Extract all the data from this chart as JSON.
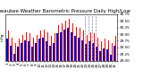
{
  "title": "Milwaukee Weather Barometric Pressure Daily High/Low",
  "background_color": "#ffffff",
  "high_color": "#ff0000",
  "low_color": "#0000cc",
  "ylim": [
    29.0,
    30.75
  ],
  "yticks": [
    29.0,
    29.25,
    29.5,
    29.75,
    30.0,
    30.25,
    30.5,
    30.75
  ],
  "ytick_labels": [
    "29.00",
    "29.25",
    "29.50",
    "29.75",
    "30.00",
    "30.25",
    "30.50",
    "30.75"
  ],
  "days": [
    "1",
    "2",
    "3",
    "4",
    "5",
    "6",
    "7",
    "8",
    "9",
    "10",
    "11",
    "12",
    "13",
    "14",
    "15",
    "16",
    "17",
    "18",
    "19",
    "20",
    "21",
    "22",
    "23",
    "24",
    "25",
    "26",
    "27",
    "28",
    "29",
    "30",
    "31"
  ],
  "high_vals": [
    30.12,
    29.88,
    29.65,
    29.82,
    29.98,
    30.08,
    30.02,
    29.88,
    29.98,
    30.12,
    30.18,
    30.08,
    29.92,
    30.02,
    30.32,
    30.42,
    30.52,
    30.58,
    30.42,
    30.28,
    30.22,
    30.12,
    29.98,
    30.08,
    30.05,
    29.88,
    29.72,
    29.82,
    29.78,
    29.68,
    29.92
  ],
  "low_vals": [
    29.82,
    29.58,
    29.28,
    29.52,
    29.68,
    29.78,
    29.72,
    29.52,
    29.68,
    29.82,
    29.88,
    29.72,
    29.58,
    29.68,
    30.02,
    30.08,
    30.18,
    30.22,
    30.08,
    29.92,
    29.88,
    29.78,
    29.62,
    29.72,
    29.68,
    29.52,
    29.38,
    29.48,
    29.42,
    29.22,
    29.58
  ],
  "dashed_region": [
    22,
    23,
    24
  ],
  "title_fontsize": 4.0,
  "tick_fontsize": 3.0,
  "bar_width": 0.42
}
